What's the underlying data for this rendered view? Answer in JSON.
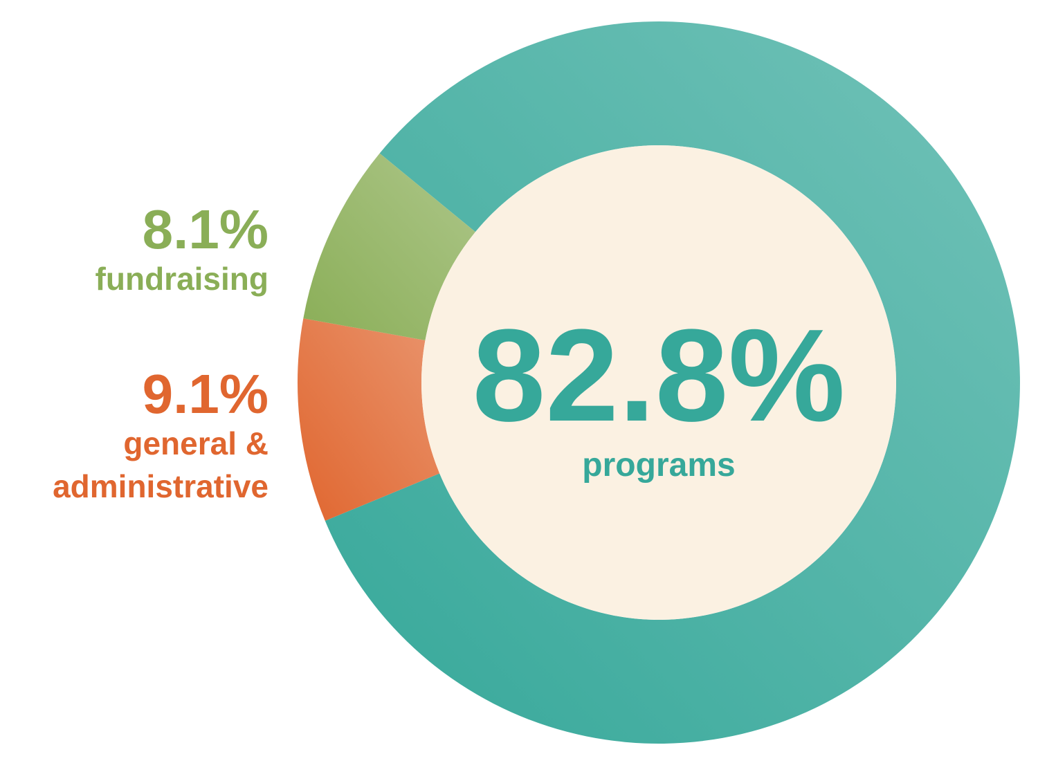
{
  "chart_data": {
    "type": "donut",
    "categories": [
      "programs",
      "general & administrative",
      "fundraising"
    ],
    "values": [
      82.8,
      9.1,
      8.1
    ],
    "value_labels": [
      "82.8%",
      "9.1%",
      "8.1%"
    ],
    "colors": [
      "#36a89a",
      "#e0662f",
      "#8aae57"
    ]
  }
}
